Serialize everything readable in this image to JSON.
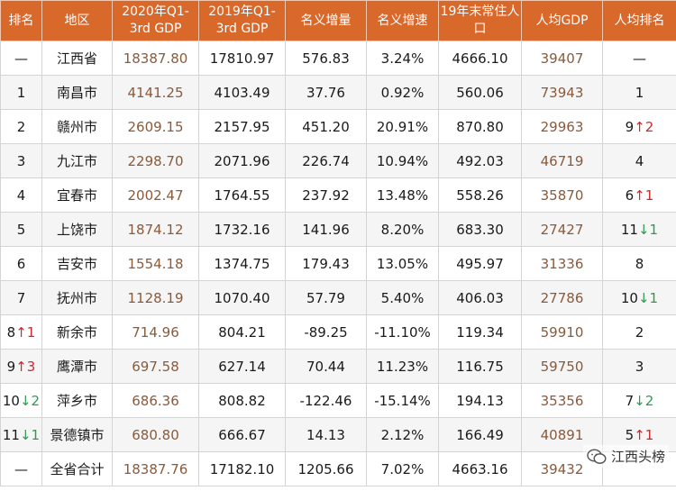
{
  "headers": [
    "排名",
    "地区",
    "2020年Q1-3rd GDP",
    "2019年Q1-3rd GDP",
    "名义增量",
    "名义增速",
    "19年末常住人口",
    "人均GDP",
    "人均排名"
  ],
  "rows": [
    {
      "rank": "—",
      "rank_delta": "",
      "region": "江西省",
      "gdp2020": "18387.80",
      "gdp2019": "17810.97",
      "increment": "576.83",
      "growth": "3.24%",
      "population": "4666.10",
      "per_capita": "39407",
      "pc_rank": "—",
      "pc_rank_delta": ""
    },
    {
      "rank": "1",
      "rank_delta": "",
      "region": "南昌市",
      "gdp2020": "4141.25",
      "gdp2019": "4103.49",
      "increment": "37.76",
      "growth": "0.92%",
      "population": "560.06",
      "per_capita": "73943",
      "pc_rank": "1",
      "pc_rank_delta": ""
    },
    {
      "rank": "2",
      "rank_delta": "",
      "region": "赣州市",
      "gdp2020": "2609.15",
      "gdp2019": "2157.95",
      "increment": "451.20",
      "growth": "20.91%",
      "population": "870.80",
      "per_capita": "29963",
      "pc_rank": "9",
      "pc_rank_delta": "↑2"
    },
    {
      "rank": "3",
      "rank_delta": "",
      "region": "九江市",
      "gdp2020": "2298.70",
      "gdp2019": "2071.96",
      "increment": "226.74",
      "growth": "10.94%",
      "population": "492.03",
      "per_capita": "46719",
      "pc_rank": "4",
      "pc_rank_delta": ""
    },
    {
      "rank": "4",
      "rank_delta": "",
      "region": "宜春市",
      "gdp2020": "2002.47",
      "gdp2019": "1764.55",
      "increment": "237.92",
      "growth": "13.48%",
      "population": "558.26",
      "per_capita": "35870",
      "pc_rank": "6",
      "pc_rank_delta": "↑1"
    },
    {
      "rank": "5",
      "rank_delta": "",
      "region": "上饶市",
      "gdp2020": "1874.12",
      "gdp2019": "1732.16",
      "increment": "141.96",
      "growth": "8.20%",
      "population": "683.30",
      "per_capita": "27427",
      "pc_rank": "11",
      "pc_rank_delta": "↓1"
    },
    {
      "rank": "6",
      "rank_delta": "",
      "region": "吉安市",
      "gdp2020": "1554.18",
      "gdp2019": "1374.75",
      "increment": "179.43",
      "growth": "13.05%",
      "population": "495.97",
      "per_capita": "31336",
      "pc_rank": "8",
      "pc_rank_delta": ""
    },
    {
      "rank": "7",
      "rank_delta": "",
      "region": "抚州市",
      "gdp2020": "1128.19",
      "gdp2019": "1070.40",
      "increment": "57.79",
      "growth": "5.40%",
      "population": "406.03",
      "per_capita": "27786",
      "pc_rank": "10",
      "pc_rank_delta": "↓1"
    },
    {
      "rank": "8",
      "rank_delta": "↑1",
      "region": "新余市",
      "gdp2020": "714.96",
      "gdp2019": "804.21",
      "increment": "-89.25",
      "growth": "-11.10%",
      "population": "119.34",
      "per_capita": "59910",
      "pc_rank": "2",
      "pc_rank_delta": ""
    },
    {
      "rank": "9",
      "rank_delta": "↑3",
      "region": "鹰潭市",
      "gdp2020": "697.58",
      "gdp2019": "627.14",
      "increment": "70.44",
      "growth": "11.23%",
      "population": "116.75",
      "per_capita": "59750",
      "pc_rank": "3",
      "pc_rank_delta": ""
    },
    {
      "rank": "10",
      "rank_delta": "↓2",
      "region": "萍乡市",
      "gdp2020": "686.36",
      "gdp2019": "808.82",
      "increment": "-122.46",
      "growth": "-15.14%",
      "population": "194.13",
      "per_capita": "35356",
      "pc_rank": "7",
      "pc_rank_delta": "↓2"
    },
    {
      "rank": "11",
      "rank_delta": "↓1",
      "region": "景德镇市",
      "gdp2020": "680.80",
      "gdp2019": "666.67",
      "increment": "14.13",
      "growth": "2.12%",
      "population": "166.49",
      "per_capita": "40891",
      "pc_rank": "5",
      "pc_rank_delta": "↑1"
    },
    {
      "rank": "—",
      "rank_delta": "",
      "region": "全省合计",
      "gdp2020": "18387.76",
      "gdp2019": "17182.10",
      "increment": "1205.66",
      "growth": "7.02%",
      "population": "4663.16",
      "per_capita": "39432",
      "pc_rank": "",
      "pc_rank_delta": ""
    }
  ],
  "watermark": {
    "text": "江西头榜",
    "icon": "wechat-icon"
  },
  "colors": {
    "header_bg": "#d9682b",
    "header_text": "#ffffff",
    "highlight_text": "#8a5a3b",
    "up": "#d0282b",
    "down": "#2f9a52",
    "stripe": "#f5f5f5"
  }
}
